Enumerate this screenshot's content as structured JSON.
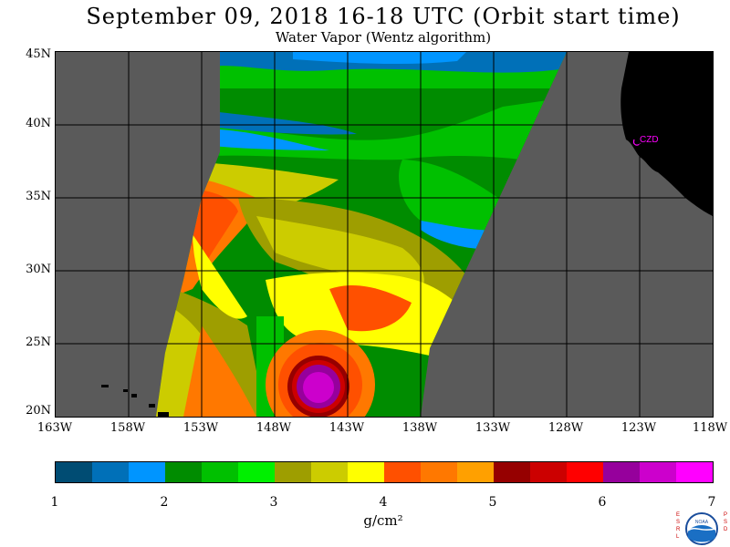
{
  "title": "September 09, 2018  16-18 UTC  (Orbit start time)",
  "subtitle": "Water Vapor (Wentz algorithm)",
  "map": {
    "lat_labels": [
      "45N",
      "40N",
      "35N",
      "30N",
      "25N",
      "20N"
    ],
    "lon_labels": [
      "163W",
      "158W",
      "153W",
      "148W",
      "143W",
      "138W",
      "133W",
      "128W",
      "123W",
      "118W"
    ],
    "lat_range": [
      20,
      45
    ],
    "lon_range": [
      -163,
      -118
    ],
    "station_label": "CZD",
    "colors": {
      "no_data": "#5a5a5a",
      "land": "#000000",
      "grid": "#000000",
      "station": "#ff00ff"
    }
  },
  "colorbar": {
    "ticks": [
      "1",
      "2",
      "3",
      "4",
      "5",
      "6",
      "7"
    ],
    "unit": "g/cm²",
    "range": [
      1,
      7
    ],
    "colors": [
      "#004c73",
      "#0070b8",
      "#0095ff",
      "#008c00",
      "#00c000",
      "#00f000",
      "#9e9e00",
      "#cccc00",
      "#ffff00",
      "#ff5000",
      "#ff7800",
      "#ffa000",
      "#960000",
      "#cc0000",
      "#ff0000",
      "#96009c",
      "#cc00cc",
      "#ff00ff"
    ]
  },
  "logo": {
    "left_letters": "ESRL",
    "right_letters": "PSD",
    "center_text": "NOAA"
  }
}
